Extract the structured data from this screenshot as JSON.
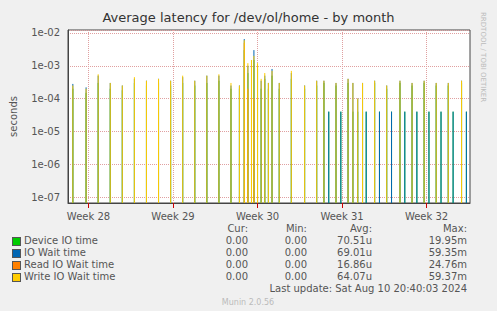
{
  "chart_data": {
    "type": "line",
    "title": "Average latency for /dev/ol/home - by month",
    "ylabel": "seconds",
    "log": "y",
    "grid": true,
    "xlim": [
      0,
      33.3
    ],
    "xticks": [
      {
        "value": 1.7,
        "label": "Week 28"
      },
      {
        "value": 8.7,
        "label": "Week 29"
      },
      {
        "value": 15.7,
        "label": "Week 30"
      },
      {
        "value": 22.7,
        "label": "Week 31"
      },
      {
        "value": 29.7,
        "label": "Week 32"
      }
    ],
    "ylim": [
      6.6e-08,
      0.0123
    ],
    "yticks": [
      {
        "value": 1e-07,
        "label": "1e-07"
      },
      {
        "value": 1e-06,
        "label": "1e-06"
      },
      {
        "value": 1e-05,
        "label": "1e-05"
      },
      {
        "value": 0.0001,
        "label": "1e-04"
      },
      {
        "value": 0.001,
        "label": "1e-03"
      },
      {
        "value": 0.01,
        "label": "1e-02"
      }
    ],
    "x": [
      0.4,
      1.5,
      2.5,
      3.5,
      4.5,
      5.5,
      6.5,
      7.5,
      8.5,
      9.5,
      10.5,
      11.5,
      12.5,
      13.5,
      14.2,
      14.6,
      14.9,
      15.2,
      15.4,
      15.7,
      16.0,
      16.3,
      16.6,
      16.9,
      17.5,
      18.5,
      19.6,
      20.6,
      21.2,
      21.6,
      22.2,
      22.6,
      23.2,
      23.6,
      24.0,
      24.4,
      24.7,
      25.4,
      25.8,
      26.4,
      26.8,
      27.5,
      27.9,
      28.5,
      28.9,
      29.5,
      29.9,
      30.5,
      30.9,
      31.5,
      31.9,
      32.6,
      33.0
    ],
    "stats_header": [
      "Cur:",
      "Min:",
      "Avg:",
      "Max:"
    ],
    "series": [
      {
        "name": "Device IO time",
        "color": "#00cc00",
        "stats": [
          "0.00",
          "0.00",
          "70.51u",
          "19.95m"
        ],
        "values": [
          0.0002,
          0.00015,
          0.0003,
          0.0002,
          0.00018,
          0.0003,
          0.00025,
          0.0003,
          0.00025,
          0.0003,
          0.00025,
          0.0003,
          0.00035,
          0.0002,
          0.0002,
          0.003,
          0.0006,
          0.001,
          0.0015,
          0.0008,
          0.0002,
          0.0004,
          0.0002,
          0.0005,
          0.0002,
          0.0004,
          0.0002,
          0.00025,
          0.0003,
          4e-05,
          0.00025,
          4e-05,
          0.0003,
          4e-05,
          4e-05,
          4e-05,
          4e-05,
          0.0003,
          4e-05,
          0.0002,
          4e-05,
          0.0003,
          4e-05,
          0.00025,
          4e-05,
          0.0003,
          4e-05,
          0.00025,
          4e-05,
          0.00025,
          4e-05,
          0.0003,
          4e-05
        ]
      },
      {
        "name": "IO Wait time",
        "color": "#0066b3",
        "stats": [
          "0.00",
          "0.00",
          "69.01u",
          "59.35m"
        ],
        "values": [
          0.00028,
          0.00022,
          0.0005,
          0.0003,
          0.00025,
          0.0004,
          0.00035,
          0.0004,
          0.00035,
          0.00045,
          0.00035,
          0.0005,
          0.0005,
          0.00025,
          0.00025,
          0.0065,
          0.001,
          0.0015,
          0.003,
          0.001,
          0.00035,
          0.0005,
          0.0003,
          0.0008,
          0.0003,
          0.0006,
          0.00025,
          0.00035,
          0.00035,
          4e-05,
          0.0003,
          4e-05,
          0.0004,
          0.0003,
          0.0001,
          0.0003,
          4e-05,
          0.00035,
          4e-05,
          0.00025,
          4e-05,
          0.00035,
          4e-05,
          0.0003,
          4e-05,
          0.00035,
          4e-05,
          0.0003,
          4e-05,
          0.0003,
          4e-05,
          0.00035,
          4e-05
        ]
      },
      {
        "name": "Read IO Wait time",
        "color": "#ff8000",
        "stats": [
          "0.00",
          "0.00",
          "16.86u",
          "24.76m"
        ],
        "values": [
          null,
          null,
          null,
          null,
          null,
          null,
          null,
          null,
          null,
          null,
          null,
          null,
          null,
          null,
          null,
          0.005,
          0.0002,
          0.0008,
          0.0001,
          null,
          null,
          null,
          null,
          null,
          null,
          null,
          null,
          null,
          null,
          null,
          null,
          null,
          null,
          null,
          null,
          null,
          null,
          null,
          null,
          null,
          null,
          null,
          null,
          null,
          null,
          null,
          null,
          null,
          null,
          null,
          null,
          null,
          null
        ]
      },
      {
        "name": "Write IO Wait time",
        "color": "#ffcc00",
        "stats": [
          "0.00",
          "0.00",
          "64.07u",
          "59.37m"
        ],
        "values": [
          0.00025,
          0.0002,
          0.00055,
          0.0003,
          0.00025,
          0.00045,
          0.00035,
          0.0004,
          0.00035,
          0.0005,
          0.00035,
          0.0005,
          0.00055,
          0.0003,
          0.00025,
          0.006,
          0.0012,
          0.0015,
          0.002,
          0.0012,
          0.0004,
          0.0006,
          0.0003,
          0.0007,
          0.0003,
          0.0007,
          0.00025,
          0.00035,
          0.00035,
          null,
          0.0003,
          null,
          0.0004,
          0.0003,
          0.0001,
          0.0003,
          null,
          0.00035,
          null,
          0.00025,
          null,
          0.00035,
          null,
          0.0003,
          null,
          0.00035,
          null,
          0.0003,
          null,
          0.0003,
          null,
          0.00035,
          null
        ]
      }
    ],
    "last_update": "Last update: Sat Aug 10 20:40:03 2024",
    "footer": "Munin 2.0.56",
    "watermark": "RRDTOOL / TOBI OETIKER"
  }
}
